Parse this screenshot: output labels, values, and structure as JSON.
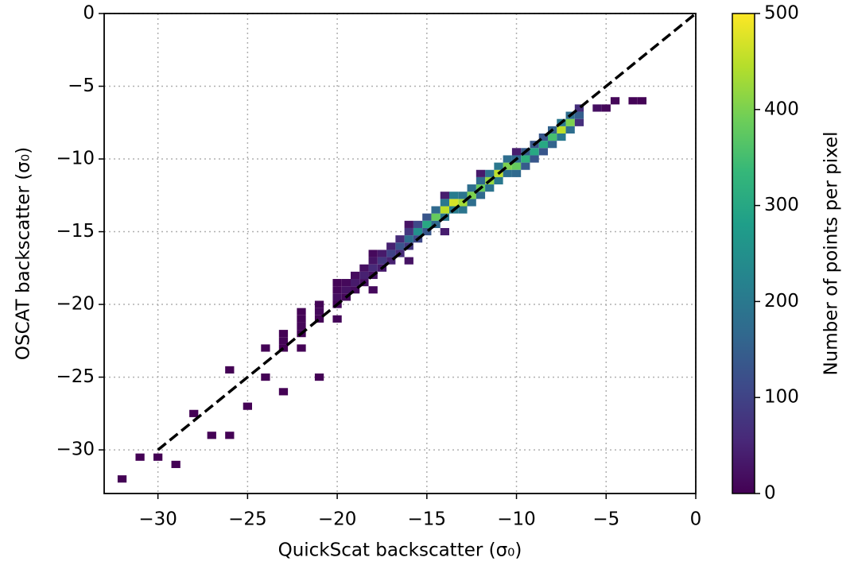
{
  "chart_data": {
    "type": "histogram2d",
    "xlabel": "QuickScat backscatter (σ₀)",
    "ylabel": "OSCAT backscatter (σ₀)",
    "colorbar_label": "Number of points per pixel",
    "colormap": "viridis",
    "grid": true,
    "xlim": [
      -33,
      0
    ],
    "ylim": [
      -33,
      0
    ],
    "xticks": [
      {
        "value": -30,
        "label": "−30"
      },
      {
        "value": -25,
        "label": "−25"
      },
      {
        "value": -20,
        "label": "−20"
      },
      {
        "value": -15,
        "label": "−15"
      },
      {
        "value": -10,
        "label": "−10"
      },
      {
        "value": -5,
        "label": "−5"
      },
      0
    ],
    "yticks": [
      {
        "value": -30,
        "label": "−30"
      },
      {
        "value": -25,
        "label": "−25"
      },
      {
        "value": -20,
        "label": "−20"
      },
      {
        "value": -15,
        "label": "−15"
      },
      {
        "value": -10,
        "label": "−10"
      },
      {
        "value": -5,
        "label": "−5"
      },
      0
    ],
    "clim": [
      0,
      500
    ],
    "cticks": [
      0,
      100,
      200,
      300,
      400,
      500
    ],
    "reference_line": {
      "x": [
        -30,
        0
      ],
      "y": [
        -30,
        0
      ],
      "color": "#000000"
    },
    "x": [
      -6.5,
      -7,
      -7.5,
      -8,
      -8.5,
      -9,
      -9.5,
      -10,
      -10.5,
      -11,
      -11.5,
      -12,
      -12.5,
      -13,
      -13.5,
      -14,
      -14.5,
      -15,
      -15.5,
      -16,
      -16.5,
      -17,
      -17.5,
      -18,
      -18.5,
      -19,
      -19.5,
      -20,
      -21,
      -22,
      -23,
      -6.5,
      -7,
      -7.5,
      -8,
      -8.5,
      -9,
      -9.5,
      -10,
      -10.5,
      -11,
      -11.5,
      -12,
      -12.5,
      -13,
      -13.5,
      -14,
      -14.5,
      -15,
      -15.5,
      -16,
      -16.5,
      -17,
      -17.5,
      -18,
      -18.5,
      -19,
      -19.5,
      -20,
      -21,
      -22,
      -23,
      -6.5,
      -7,
      -7.5,
      -8,
      -8.5,
      -9,
      -9.5,
      -10,
      -10.5,
      -11,
      -11.5,
      -12,
      -12.5,
      -13,
      -13.5,
      -14,
      -14.5,
      -15,
      -15.5,
      -16,
      -16.5,
      -17,
      -17.5,
      -18,
      -18.5,
      -19,
      -19.5,
      -20,
      -21,
      -22,
      -23,
      -5.5,
      -5,
      -4.5,
      -3.5,
      -3,
      -10,
      -12,
      -14,
      -16,
      -18,
      -20,
      -22,
      -24,
      -26,
      -28,
      -30,
      -32,
      -25,
      -27,
      -14,
      -16,
      -18,
      -20,
      -22,
      -24,
      -23,
      -26,
      -29,
      -31,
      -21
    ],
    "y": [
      -7,
      -7.5,
      -8,
      -8.5,
      -9,
      -9.5,
      -10,
      -10.5,
      -10.5,
      -11,
      -11.5,
      -12,
      -12.5,
      -13,
      -13,
      -13.5,
      -14,
      -14.5,
      -15,
      -15.5,
      -16,
      -16.5,
      -17,
      -17.5,
      -18,
      -18.5,
      -19,
      -19.5,
      -20.5,
      -21.5,
      -22.5,
      -6.5,
      -7,
      -7.5,
      -8,
      -8.5,
      -9,
      -9.5,
      -10,
      -10,
      -10.5,
      -11,
      -11.5,
      -12,
      -12.5,
      -12.5,
      -13,
      -13.5,
      -14,
      -14.5,
      -15,
      -15.5,
      -16,
      -16.5,
      -17,
      -17.5,
      -18,
      -18.5,
      -19,
      -20,
      -21,
      -22,
      -7.5,
      -8,
      -8.5,
      -9,
      -9.5,
      -10,
      -10.5,
      -11,
      -11,
      -11.5,
      -12,
      -12.5,
      -13,
      -13.5,
      -13.5,
      -14,
      -14.5,
      -15,
      -15.5,
      -16,
      -16.5,
      -17,
      -17.5,
      -18,
      -18.5,
      -19,
      -19.5,
      -20,
      -21,
      -22,
      -23,
      -6.5,
      -6.5,
      -6,
      -6,
      -6,
      -9.5,
      -11,
      -12.5,
      -14.5,
      -16.5,
      -18.5,
      -20.5,
      -23,
      -24.5,
      -27.5,
      -30.5,
      -32,
      -27,
      -29,
      -15,
      -17,
      -19,
      -21,
      -23,
      -25,
      -26,
      -29,
      -31,
      -30.5,
      -25
    ],
    "values": [
      150,
      400,
      450,
      350,
      300,
      300,
      320,
      380,
      400,
      450,
      420,
      380,
      400,
      430,
      470,
      450,
      380,
      300,
      250,
      180,
      130,
      100,
      80,
      60,
      45,
      35,
      25,
      20,
      12,
      8,
      5,
      68,
      180,
      200,
      160,
      135,
      135,
      145,
      170,
      180,
      200,
      190,
      170,
      180,
      195,
      210,
      200,
      170,
      135,
      110,
      80,
      60,
      45,
      36,
      27,
      20,
      16,
      11,
      9,
      5,
      4,
      2,
      68,
      180,
      200,
      160,
      135,
      135,
      145,
      170,
      180,
      200,
      190,
      170,
      180,
      195,
      210,
      200,
      170,
      135,
      110,
      80,
      60,
      45,
      36,
      27,
      20,
      16,
      11,
      9,
      5,
      4,
      2,
      20,
      10,
      8,
      4,
      3,
      40,
      35,
      40,
      25,
      12,
      5,
      3,
      3,
      2,
      1,
      1,
      1,
      2,
      1,
      40,
      25,
      12,
      6,
      3,
      2,
      1,
      1,
      1,
      1,
      1
    ]
  }
}
